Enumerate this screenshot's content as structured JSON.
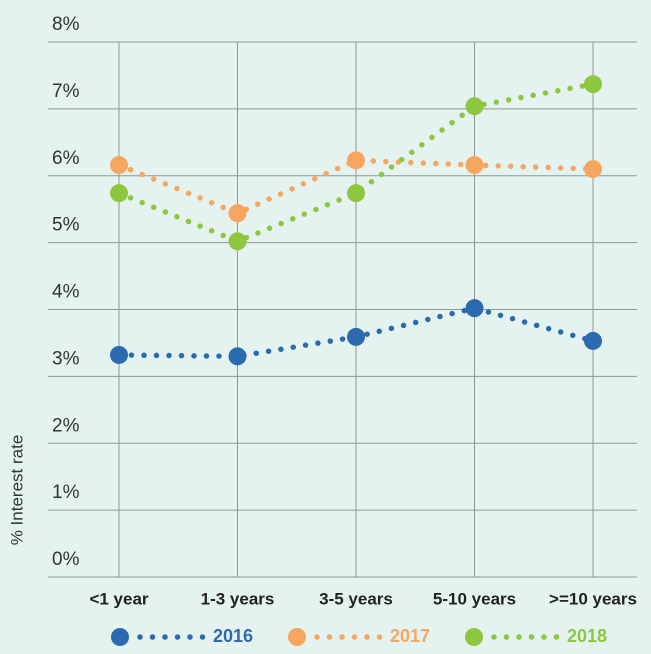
{
  "chart_data": {
    "type": "line",
    "ylabel": "% Interest rate",
    "categories": [
      "<1 year",
      "1-3 years",
      "3-5 years",
      "5-10 years",
      ">=10 years"
    ],
    "series": [
      {
        "name": "2016",
        "color": "#2b6aae",
        "values": [
          3.32,
          3.3,
          3.59,
          4.02,
          3.53
        ]
      },
      {
        "name": "2017",
        "color": "#f7a660",
        "values": [
          6.16,
          5.44,
          6.23,
          6.16,
          6.1
        ]
      },
      {
        "name": "2018",
        "color": "#8dc63f",
        "values": [
          5.74,
          5.02,
          5.74,
          7.04,
          7.37
        ]
      }
    ],
    "ylim": [
      0,
      8
    ],
    "yticks": [
      {
        "value": 0,
        "label": "0%"
      },
      {
        "value": 1,
        "label": "1%"
      },
      {
        "value": 2,
        "label": "2%"
      },
      {
        "value": 3,
        "label": "3%"
      },
      {
        "value": 4,
        "label": "4%"
      },
      {
        "value": 5,
        "label": "5%"
      },
      {
        "value": 6,
        "label": "6%"
      },
      {
        "value": 7,
        "label": "7%"
      },
      {
        "value": 8,
        "label": "8%"
      }
    ],
    "grid": true,
    "legend": "bottom"
  }
}
